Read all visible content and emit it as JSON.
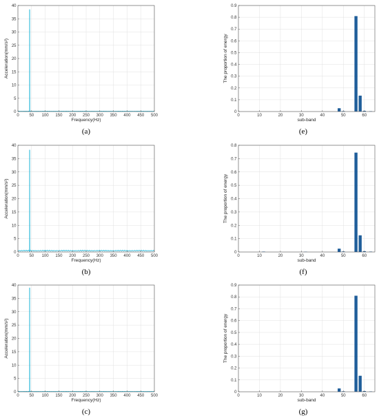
{
  "colors": {
    "spectrum": "#1cb3d6",
    "bar": "#1f5e9a",
    "grid": "#e0e0e0",
    "axis": "#555555"
  },
  "chart_data": [
    {
      "id": "a",
      "type": "line",
      "caption": "(a)",
      "xlabel": "Frequency(Hz)",
      "ylabel": "Acceleration(mm/s²)",
      "xlim": [
        0,
        500
      ],
      "ylim": [
        0,
        40
      ],
      "xticks": [
        "0",
        "50",
        "100",
        "150",
        "200",
        "250",
        "300",
        "350",
        "400",
        "450",
        "500"
      ],
      "yticks": [
        "0",
        "5",
        "10",
        "15",
        "20",
        "25",
        "30",
        "35",
        "40"
      ],
      "grid": true,
      "peak": {
        "x": 43,
        "y": 38.5
      },
      "noise_level": 0.15
    },
    {
      "id": "b",
      "type": "line",
      "caption": "(b)",
      "xlabel": "Frequency(Hz)",
      "ylabel": "Acceleration(mm/s²)",
      "xlim": [
        0,
        500
      ],
      "ylim": [
        0,
        40
      ],
      "xticks": [
        "0",
        "50",
        "100",
        "150",
        "200",
        "250",
        "300",
        "350",
        "400",
        "450",
        "500"
      ],
      "yticks": [
        "0",
        "5",
        "10",
        "15",
        "20",
        "25",
        "30",
        "35",
        "40"
      ],
      "grid": true,
      "peak": {
        "x": 43,
        "y": 38.3
      },
      "noise_level": 0.7
    },
    {
      "id": "c",
      "type": "line",
      "caption": "(c)",
      "xlabel": "Frequency(Hz)",
      "ylabel": "Acceleration(mm/s²)",
      "xlim": [
        0,
        500
      ],
      "ylim": [
        0,
        40
      ],
      "xticks": [
        "0",
        "50",
        "100",
        "150",
        "200",
        "250",
        "300",
        "350",
        "400",
        "450",
        "500"
      ],
      "yticks": [
        "0",
        "5",
        "10",
        "15",
        "20",
        "25",
        "30",
        "35",
        "40"
      ],
      "grid": true,
      "peak": {
        "x": 43,
        "y": 39
      },
      "noise_level": 0.15
    },
    {
      "id": "e",
      "type": "bar",
      "caption": "(e)",
      "xlabel": "sub-band",
      "ylabel": "The proportion of energy",
      "xlim": [
        0,
        65
      ],
      "ylim": [
        0,
        0.9
      ],
      "xticks": [
        "0",
        "10",
        "20",
        "30",
        "40",
        "50",
        "60"
      ],
      "yticks": [
        "0",
        "0.1",
        "0.2",
        "0.3",
        "0.4",
        "0.5",
        "0.6",
        "0.7",
        "0.8",
        "0.9"
      ],
      "grid": true,
      "bars": [
        {
          "x": 48,
          "value": 0.028
        },
        {
          "x": 50,
          "value": 0.004
        },
        {
          "x": 56,
          "value": 0.81
        },
        {
          "x": 58,
          "value": 0.135
        },
        {
          "x": 60,
          "value": 0.006
        },
        {
          "x": 63,
          "value": 0.003
        }
      ]
    },
    {
      "id": "f",
      "type": "bar",
      "caption": "(f)",
      "xlabel": "sub-band",
      "ylabel": "The proportion of energy",
      "xlim": [
        0,
        65
      ],
      "ylim": [
        0,
        0.8
      ],
      "xticks": [
        "0",
        "10",
        "20",
        "30",
        "40",
        "50",
        "60"
      ],
      "yticks": [
        "0",
        "0.1",
        "0.2",
        "0.3",
        "0.4",
        "0.5",
        "0.6",
        "0.7",
        "0.8"
      ],
      "grid": true,
      "bars": [
        {
          "x": 12,
          "value": 0.003
        },
        {
          "x": 32,
          "value": 0.002
        },
        {
          "x": 48,
          "value": 0.025
        },
        {
          "x": 50,
          "value": 0.004
        },
        {
          "x": 56,
          "value": 0.745
        },
        {
          "x": 58,
          "value": 0.125
        },
        {
          "x": 60,
          "value": 0.006
        },
        {
          "x": 63,
          "value": 0.003
        }
      ]
    },
    {
      "id": "g",
      "type": "bar",
      "caption": "(g)",
      "xlabel": "sub-band",
      "ylabel": "The proportion of energy",
      "xlim": [
        0,
        65
      ],
      "ylim": [
        0,
        0.9
      ],
      "xticks": [
        "0",
        "10",
        "20",
        "30",
        "40",
        "50",
        "60"
      ],
      "yticks": [
        "0",
        "0.1",
        "0.2",
        "0.3",
        "0.4",
        "0.5",
        "0.6",
        "0.7",
        "0.8",
        "0.9"
      ],
      "grid": true,
      "bars": [
        {
          "x": 48,
          "value": 0.028
        },
        {
          "x": 50,
          "value": 0.004
        },
        {
          "x": 56,
          "value": 0.81
        },
        {
          "x": 58,
          "value": 0.135
        },
        {
          "x": 60,
          "value": 0.006
        },
        {
          "x": 63,
          "value": 0.003
        }
      ]
    }
  ]
}
